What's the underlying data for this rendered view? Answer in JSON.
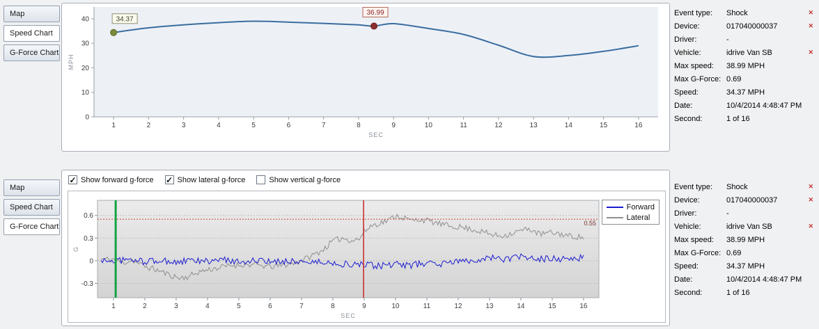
{
  "top_panel": {
    "tabs": [
      {
        "label": "Map",
        "selected": false
      },
      {
        "label": "Speed Chart",
        "selected": true
      },
      {
        "label": "G-Force Chart",
        "selected": false
      }
    ]
  },
  "bottom_panel": {
    "tabs": [
      {
        "label": "Map",
        "selected": false
      },
      {
        "label": "Speed Chart",
        "selected": false
      },
      {
        "label": "G-Force Chart",
        "selected": true
      }
    ],
    "checkboxes": [
      {
        "label": "Show forward g-force",
        "checked": true
      },
      {
        "label": "Show lateral g-force",
        "checked": true
      },
      {
        "label": "Show vertical g-force",
        "checked": false
      }
    ]
  },
  "info_panel": {
    "rows": [
      {
        "label": "Event type:",
        "value": "Shock",
        "removable": true
      },
      {
        "label": "Device:",
        "value": "017040000037",
        "removable": true
      },
      {
        "label": "Driver:",
        "value": "-",
        "removable": false
      },
      {
        "label": "Vehicle:",
        "value": "idrive Van SB",
        "removable": true
      },
      {
        "label": "Max speed:",
        "value": "38.99 MPH",
        "removable": false
      },
      {
        "label": "Max G-Force:",
        "value": "0.69",
        "removable": false
      },
      {
        "label": "Speed:",
        "value": "34.37 MPH",
        "removable": false
      },
      {
        "label": "Date:",
        "value": "10/4/2014 4:48:47 PM",
        "removable": false
      },
      {
        "label": "Second:",
        "value": "1 of 16",
        "removable": false
      }
    ]
  },
  "chart_data": [
    {
      "type": "line",
      "title": "Speed Chart",
      "xlabel": "SEC",
      "ylabel": "MPH",
      "x": [
        1,
        2,
        3,
        4,
        5,
        6,
        7,
        8,
        8.44,
        9,
        10,
        11,
        12,
        13,
        14,
        15,
        16
      ],
      "values": [
        34.37,
        36.3,
        37.5,
        38.4,
        39.0,
        38.6,
        38.1,
        37.5,
        36.99,
        38.0,
        36.0,
        33.6,
        29.2,
        24.6,
        25.0,
        26.7,
        29.0
      ],
      "xticks": [
        1,
        2,
        3,
        4,
        5,
        6,
        7,
        8,
        9,
        10,
        11,
        12,
        13,
        14,
        15,
        16
      ],
      "yticks": [
        0,
        10,
        20,
        30,
        40
      ],
      "xlim": [
        0.44,
        16.56
      ],
      "ylim": [
        0,
        44.8
      ],
      "line_color": "#3a6d9f",
      "plot_bg": "#edf1f6",
      "markers": [
        {
          "x": 1,
          "y": 34.37,
          "label": "34.37",
          "color": "#7d8c3c",
          "stroke": "#5c6b24",
          "box_bg": "#fbfbef",
          "box_border": "#8f8f72",
          "text_color": "#44442a",
          "box_dx": 16
        },
        {
          "x": 8.44,
          "y": 36.99,
          "label": "36.99",
          "color": "#8e2f2f",
          "stroke": "#6b1d1d",
          "box_bg": "#fdf2ee",
          "box_border": "#b06a5a",
          "text_color": "#8a2a2a",
          "box_dx": 2
        }
      ]
    },
    {
      "type": "line-multi",
      "title": "G-Force Chart",
      "xlabel": "SEC",
      "ylabel": "G",
      "xticks": [
        1,
        2,
        3,
        4,
        5,
        6,
        7,
        8,
        9,
        10,
        11,
        12,
        13,
        14,
        15,
        16
      ],
      "yticks": [
        -0.3,
        0,
        0.3,
        0.6
      ],
      "ytick_labels": [
        "-0.3",
        "0",
        "0.3",
        "0.6"
      ],
      "xlim": [
        0.49,
        16.49
      ],
      "ylim": [
        -0.49,
        0.8
      ],
      "sample_step": 0.05,
      "threshold": {
        "y": 0.55,
        "label": "0.55",
        "color": "#cc4433"
      },
      "vlines": [
        {
          "x": 1.07,
          "color": "#13a244",
          "width": 3
        },
        {
          "x": 8.98,
          "color": "#cc2222",
          "width": 1.5
        }
      ],
      "series": [
        {
          "name": "Lateral",
          "color": "#8f8f8f",
          "seed": 11,
          "noise": 0.04,
          "envelope": [
            [
              1.0,
              0.02
            ],
            [
              1.3,
              -0.03
            ],
            [
              1.6,
              0.01
            ],
            [
              1.9,
              -0.06
            ],
            [
              2.2,
              -0.1
            ],
            [
              2.5,
              -0.14
            ],
            [
              2.8,
              -0.19
            ],
            [
              3.1,
              -0.23
            ],
            [
              3.4,
              -0.21
            ],
            [
              3.7,
              -0.15
            ],
            [
              4.0,
              -0.12
            ],
            [
              4.4,
              -0.09
            ],
            [
              4.8,
              -0.06
            ],
            [
              5.2,
              -0.05
            ],
            [
              5.6,
              -0.06
            ],
            [
              6.0,
              -0.08
            ],
            [
              6.4,
              -0.06
            ],
            [
              6.8,
              -0.03
            ],
            [
              7.1,
              0.02
            ],
            [
              7.4,
              0.08
            ],
            [
              7.7,
              0.15
            ],
            [
              8.0,
              0.26
            ],
            [
              8.3,
              0.3
            ],
            [
              8.6,
              0.27
            ],
            [
              8.85,
              0.29
            ],
            [
              9.0,
              0.38
            ],
            [
              9.2,
              0.46
            ],
            [
              9.5,
              0.5
            ],
            [
              9.8,
              0.54
            ],
            [
              10.0,
              0.6
            ],
            [
              10.2,
              0.58
            ],
            [
              10.5,
              0.53
            ],
            [
              10.8,
              0.55
            ],
            [
              11.1,
              0.52
            ],
            [
              11.4,
              0.49
            ],
            [
              11.7,
              0.46
            ],
            [
              12.0,
              0.45
            ],
            [
              12.4,
              0.42
            ],
            [
              12.8,
              0.38
            ],
            [
              13.1,
              0.34
            ],
            [
              13.4,
              0.33
            ],
            [
              13.7,
              0.36
            ],
            [
              14.0,
              0.4
            ],
            [
              14.3,
              0.42
            ],
            [
              14.6,
              0.35
            ],
            [
              14.9,
              0.37
            ],
            [
              15.2,
              0.36
            ],
            [
              15.5,
              0.33
            ],
            [
              15.8,
              0.32
            ],
            [
              16.0,
              0.3
            ]
          ]
        },
        {
          "name": "Forward",
          "color": "#1b1bd0",
          "seed": 97,
          "noise": 0.045,
          "envelope": [
            [
              1.0,
              0.0
            ],
            [
              1.5,
              0.01
            ],
            [
              2.0,
              -0.01
            ],
            [
              2.5,
              0.0
            ],
            [
              3.0,
              -0.02
            ],
            [
              3.5,
              0.0
            ],
            [
              4.0,
              -0.01
            ],
            [
              4.5,
              0.01
            ],
            [
              5.0,
              -0.01
            ],
            [
              5.5,
              0.0
            ],
            [
              6.0,
              -0.02
            ],
            [
              6.5,
              0.0
            ],
            [
              7.0,
              -0.01
            ],
            [
              7.5,
              -0.02
            ],
            [
              8.0,
              -0.03
            ],
            [
              8.5,
              -0.05
            ],
            [
              9.0,
              -0.06
            ],
            [
              9.5,
              -0.07
            ],
            [
              10.0,
              -0.05
            ],
            [
              10.5,
              -0.06
            ],
            [
              11.0,
              -0.03
            ],
            [
              11.5,
              -0.04
            ],
            [
              12.0,
              -0.01
            ],
            [
              12.5,
              0.01
            ],
            [
              13.0,
              0.04
            ],
            [
              13.5,
              0.02
            ],
            [
              14.0,
              0.05
            ],
            [
              14.5,
              0.02
            ],
            [
              15.0,
              0.03
            ],
            [
              15.5,
              0.02
            ],
            [
              16.0,
              0.04
            ]
          ]
        }
      ],
      "legend": [
        {
          "label": "Forward",
          "color": "#1b1bd0"
        },
        {
          "label": "Lateral",
          "color": "#8f8f8f"
        }
      ]
    }
  ]
}
